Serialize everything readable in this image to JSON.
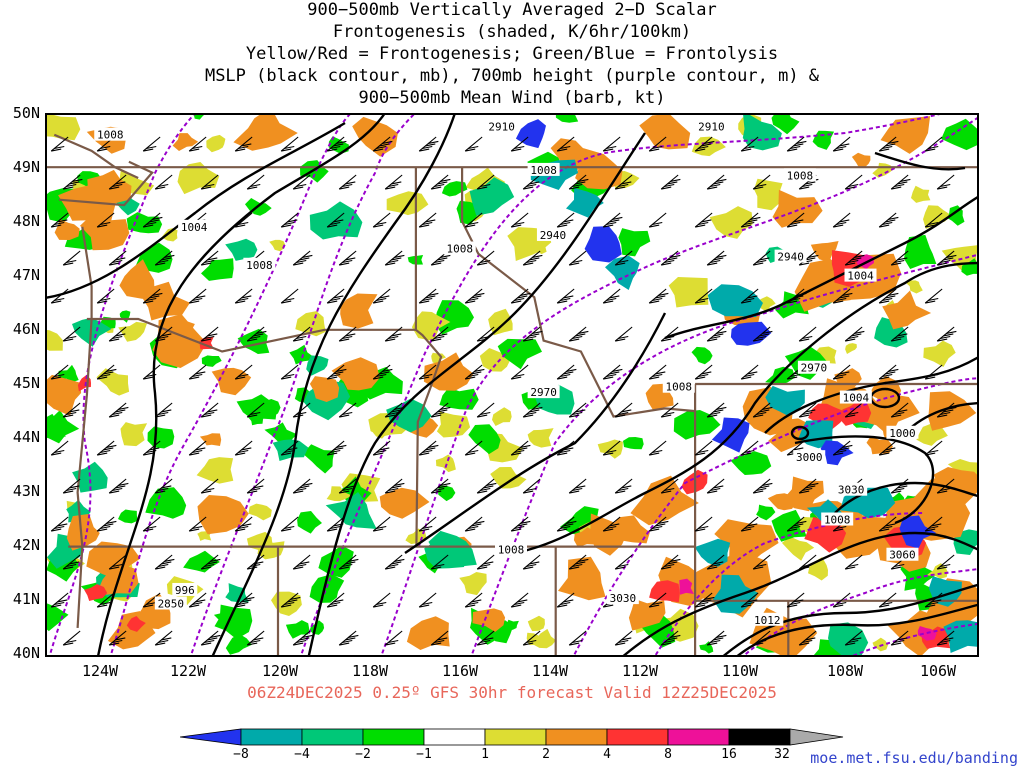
{
  "title": {
    "lines": [
      "900−500mb Vertically Averaged 2−D Scalar",
      "Frontogenesis (shaded, K/6hr/100km)",
      "Yellow/Red = Frontogenesis;  Green/Blue = Frontolysis",
      "MSLP (black contour, mb), 700mb height (purple contour, m) &",
      "900−500mb Mean Wind (barb, kt)"
    ]
  },
  "map": {
    "lat_range": [
      40,
      50
    ],
    "lon_range": [
      -125,
      -105
    ],
    "lat_labels": [
      "50N",
      "49N",
      "48N",
      "47N",
      "46N",
      "45N",
      "44N",
      "43N",
      "42N",
      "41N",
      "40N"
    ],
    "lon_labels": [
      "124W",
      "122W",
      "120W",
      "118W",
      "116W",
      "114W",
      "112W",
      "110W",
      "108W",
      "106W"
    ],
    "colors": {
      "mslp": "#000000",
      "height": "#9900cc",
      "borders": "#7a5a48",
      "barbs": "#000000"
    },
    "mslp_labels": [
      {
        "text": "1008",
        "lat": 49.6,
        "lon": -123.6
      },
      {
        "text": "1004",
        "lat": 47.9,
        "lon": -121.8
      },
      {
        "text": "1008",
        "lat": 47.2,
        "lon": -120.4
      },
      {
        "text": "1008",
        "lat": 47.5,
        "lon": -116.1
      },
      {
        "text": "1008",
        "lat": 48.95,
        "lon": -114.3
      },
      {
        "text": "1008",
        "lat": 48.85,
        "lon": -108.8
      },
      {
        "text": "1004",
        "lat": 47.0,
        "lon": -107.5
      },
      {
        "text": "1008",
        "lat": 44.95,
        "lon": -111.4
      },
      {
        "text": "1004",
        "lat": 44.75,
        "lon": -107.6
      },
      {
        "text": "1000",
        "lat": 44.1,
        "lon": -106.6
      },
      {
        "text": "1008",
        "lat": 42.5,
        "lon": -108.0
      },
      {
        "text": "1008",
        "lat": 41.95,
        "lon": -115.0
      },
      {
        "text": "1012",
        "lat": 40.65,
        "lon": -109.5
      },
      {
        "text": "996",
        "lat": 41.2,
        "lon": -122.0
      }
    ],
    "height_labels": [
      {
        "text": "2910",
        "lat": 49.75,
        "lon": -115.2
      },
      {
        "text": "2910",
        "lat": 49.75,
        "lon": -110.7
      },
      {
        "text": "2940",
        "lat": 47.75,
        "lon": -114.1
      },
      {
        "text": "2940",
        "lat": 47.35,
        "lon": -109.0
      },
      {
        "text": "2970",
        "lat": 45.3,
        "lon": -108.5
      },
      {
        "text": "2970",
        "lat": 44.85,
        "lon": -114.3
      },
      {
        "text": "3000",
        "lat": 43.65,
        "lon": -108.6
      },
      {
        "text": "3030",
        "lat": 43.05,
        "lon": -107.7
      },
      {
        "text": "3030",
        "lat": 41.05,
        "lon": -112.6
      },
      {
        "text": "3060",
        "lat": 41.85,
        "lon": -106.6
      },
      {
        "text": "2850",
        "lat": 40.95,
        "lon": -122.3
      }
    ]
  },
  "valid_time": "06Z24DEC2025 0.25º GFS 30hr forecast Valid 12Z25DEC2025",
  "colorbar": {
    "labels": [
      "−8",
      "−4",
      "−2",
      "−1",
      "1",
      "2",
      "4",
      "8",
      "16",
      "32"
    ],
    "colors": [
      "#2233ee",
      "#00aaaa",
      "#00c878",
      "#00dd00",
      "#ffffff",
      "#dddd33",
      "#f09020",
      "#ff3333",
      "#ee1199",
      "#000000",
      "#aaaaaa"
    ]
  },
  "credit": "moe.met.fsu.edu/banding"
}
